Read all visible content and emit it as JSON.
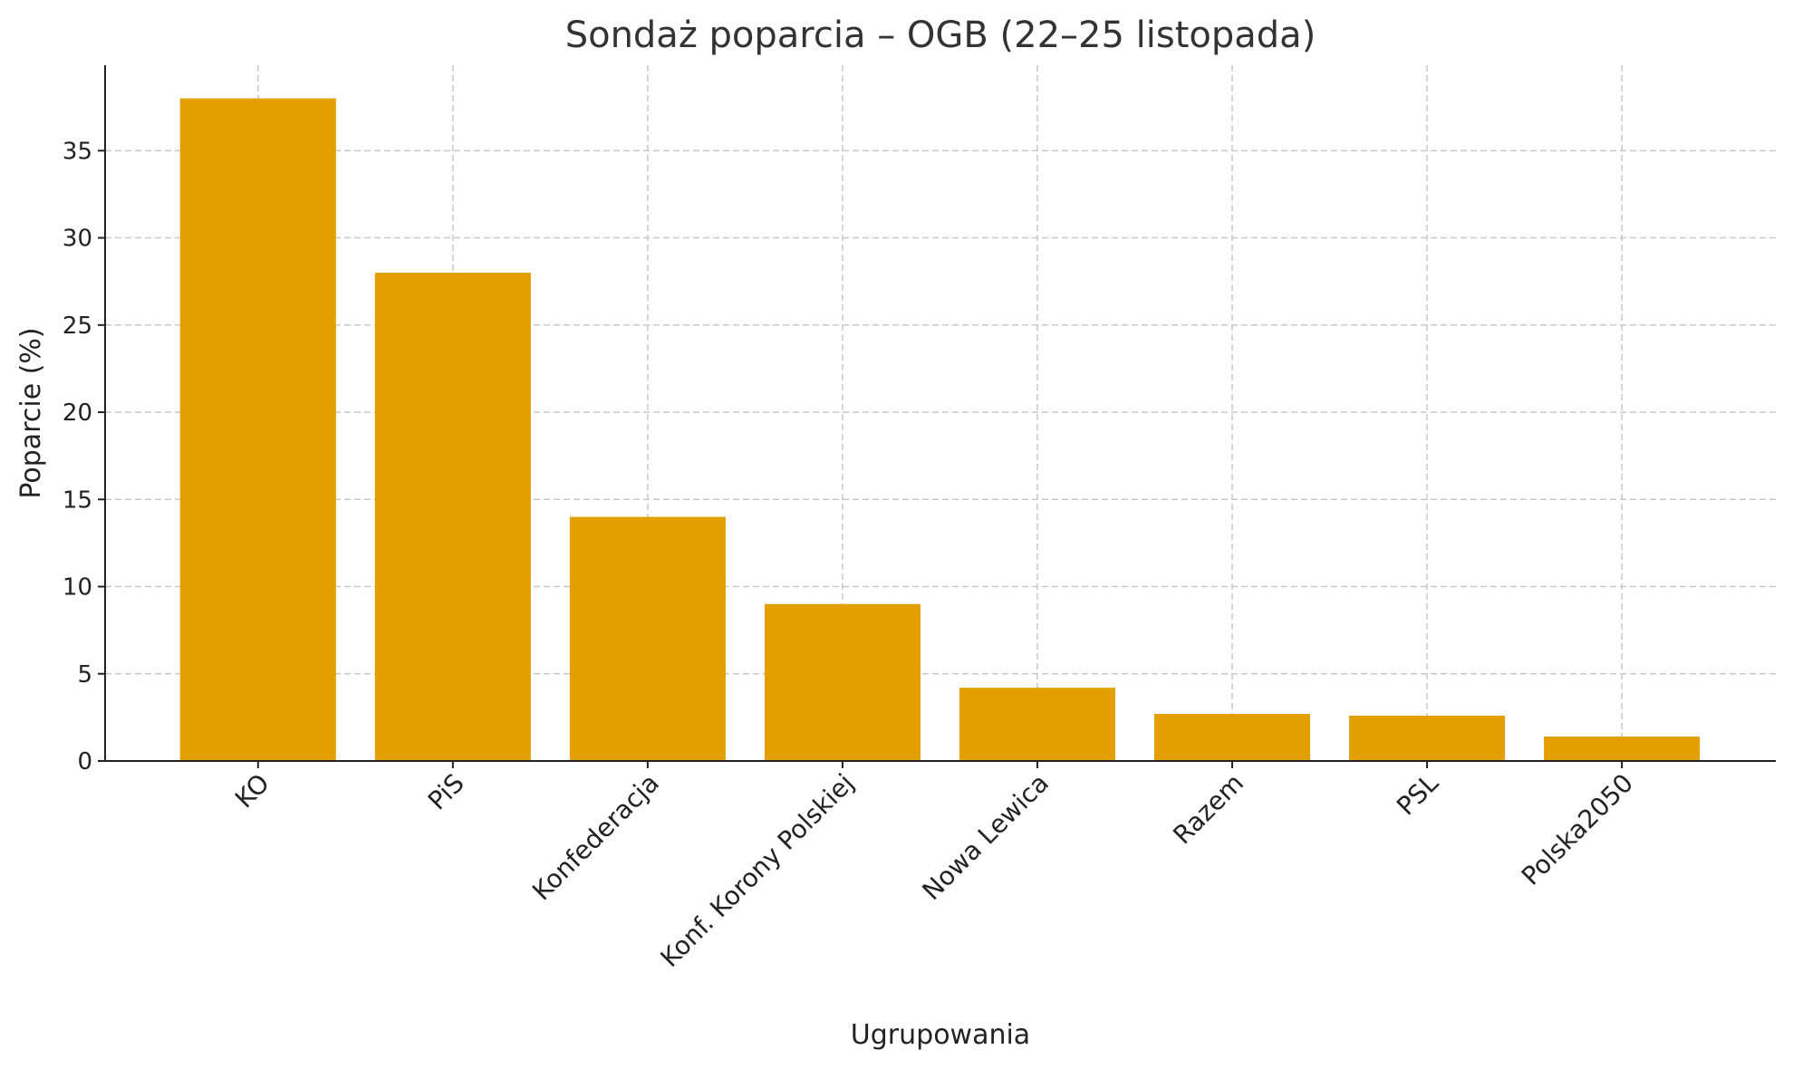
{
  "chart_data": {
    "type": "bar",
    "title": "Sondaż poparcia – OGB (22–25 listopada)",
    "xlabel": "Ugrupowania",
    "ylabel": "Poparcie (%)",
    "categories": [
      "KO",
      "PiS",
      "Konfederacja",
      "Konf. Korony Polskiej",
      "Nowa Lewica",
      "Razem",
      "PSL",
      "Polska2050"
    ],
    "values": [
      38,
      28,
      14,
      9,
      4.2,
      2.7,
      2.6,
      1.4
    ],
    "ylim": [
      0,
      39.9
    ],
    "yticks": [
      0,
      5,
      10,
      15,
      20,
      25,
      30,
      35
    ],
    "grid": true,
    "bar_color": "#E39F00"
  }
}
